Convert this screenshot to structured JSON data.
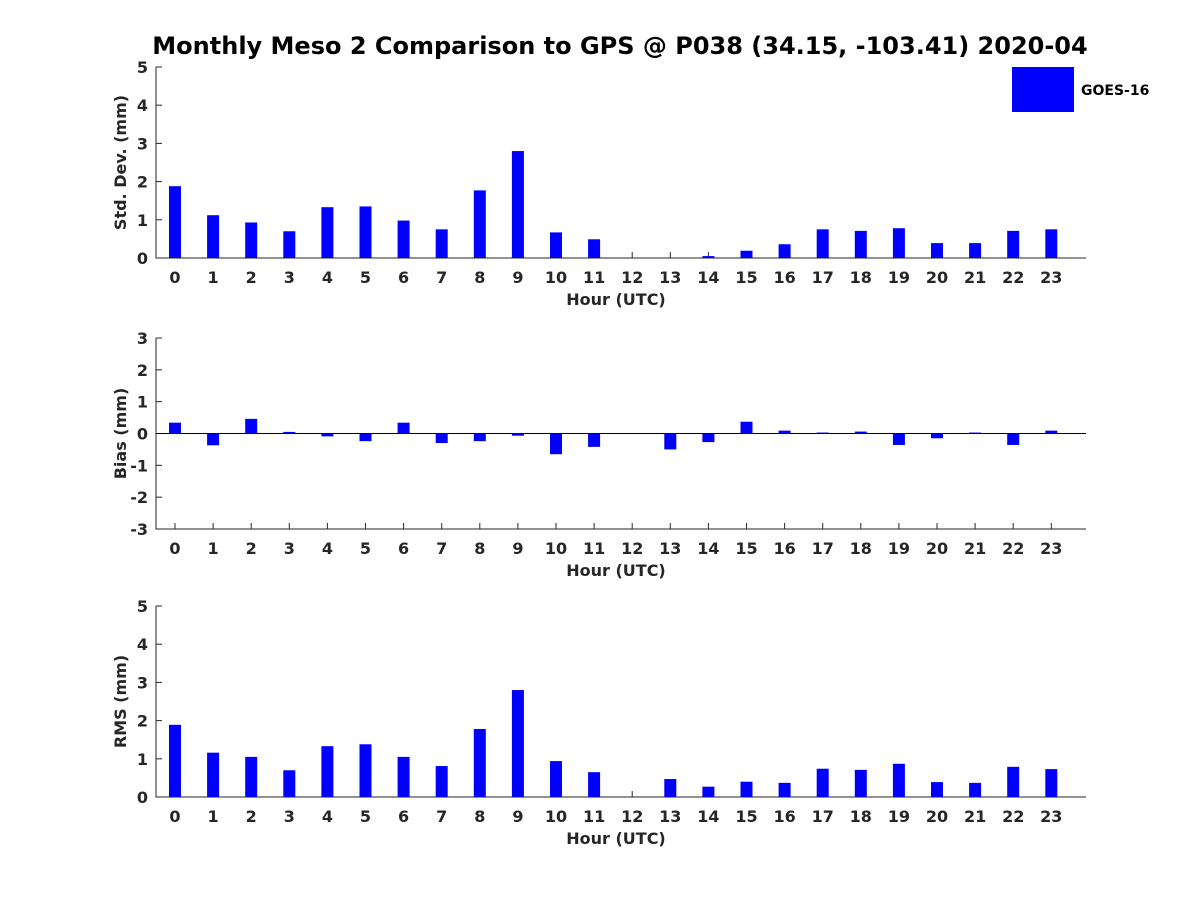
{
  "title": "Monthly Meso 2 Comparison to GPS @ P038 (34.15, -103.41) 2020-04",
  "legend": {
    "label": "GOES-16",
    "color": "#0000ff",
    "placement": "top-right"
  },
  "chart_data": [
    {
      "type": "bar",
      "name": "std-dev",
      "xlabel": "Hour (UTC)",
      "ylabel": "Std. Dev. (mm)",
      "ylim": [
        0,
        5
      ],
      "yticks": [
        0,
        1,
        2,
        3,
        4,
        5
      ],
      "categories": [
        "0",
        "1",
        "2",
        "3",
        "4",
        "5",
        "6",
        "7",
        "8",
        "9",
        "10",
        "11",
        "12",
        "13",
        "14",
        "15",
        "16",
        "17",
        "18",
        "19",
        "20",
        "21",
        "22",
        "23"
      ],
      "series": [
        {
          "name": "GOES-16",
          "color": "#0000ff",
          "values": [
            1.88,
            1.12,
            0.93,
            0.7,
            1.33,
            1.35,
            0.98,
            0.75,
            1.77,
            2.8,
            0.67,
            0.49,
            0,
            0,
            0.05,
            0.19,
            0.36,
            0.75,
            0.71,
            0.78,
            0.39,
            0.39,
            0.71,
            0.75
          ]
        }
      ]
    },
    {
      "type": "bar",
      "name": "bias",
      "xlabel": "Hour (UTC)",
      "ylabel": "Bias (mm)",
      "ylim": [
        -3,
        3
      ],
      "yticks": [
        -3,
        -2,
        -1,
        0,
        1,
        2,
        3
      ],
      "categories": [
        "0",
        "1",
        "2",
        "3",
        "4",
        "5",
        "6",
        "7",
        "8",
        "9",
        "10",
        "11",
        "12",
        "13",
        "14",
        "15",
        "16",
        "17",
        "18",
        "19",
        "20",
        "21",
        "22",
        "23"
      ],
      "series": [
        {
          "name": "GOES-16",
          "color": "#0000ff",
          "values": [
            0.34,
            -0.37,
            0.46,
            0.05,
            -0.09,
            -0.24,
            0.34,
            -0.3,
            -0.24,
            -0.07,
            -0.65,
            -0.42,
            0,
            -0.5,
            -0.27,
            0.37,
            0.09,
            0.03,
            0.06,
            -0.36,
            -0.15,
            0.03,
            -0.36,
            0.09
          ]
        }
      ]
    },
    {
      "type": "bar",
      "name": "rms",
      "xlabel": "Hour (UTC)",
      "ylabel": "RMS (mm)",
      "ylim": [
        0,
        5
      ],
      "yticks": [
        0,
        1,
        2,
        3,
        4,
        5
      ],
      "categories": [
        "0",
        "1",
        "2",
        "3",
        "4",
        "5",
        "6",
        "7",
        "8",
        "9",
        "10",
        "11",
        "12",
        "13",
        "14",
        "15",
        "16",
        "17",
        "18",
        "19",
        "20",
        "21",
        "22",
        "23"
      ],
      "series": [
        {
          "name": "GOES-16",
          "color": "#0000ff",
          "values": [
            1.89,
            1.16,
            1.05,
            0.7,
            1.33,
            1.38,
            1.05,
            0.81,
            1.78,
            2.8,
            0.94,
            0.65,
            0,
            0.47,
            0.27,
            0.4,
            0.37,
            0.74,
            0.71,
            0.87,
            0.39,
            0.37,
            0.79,
            0.73
          ]
        }
      ]
    }
  ]
}
